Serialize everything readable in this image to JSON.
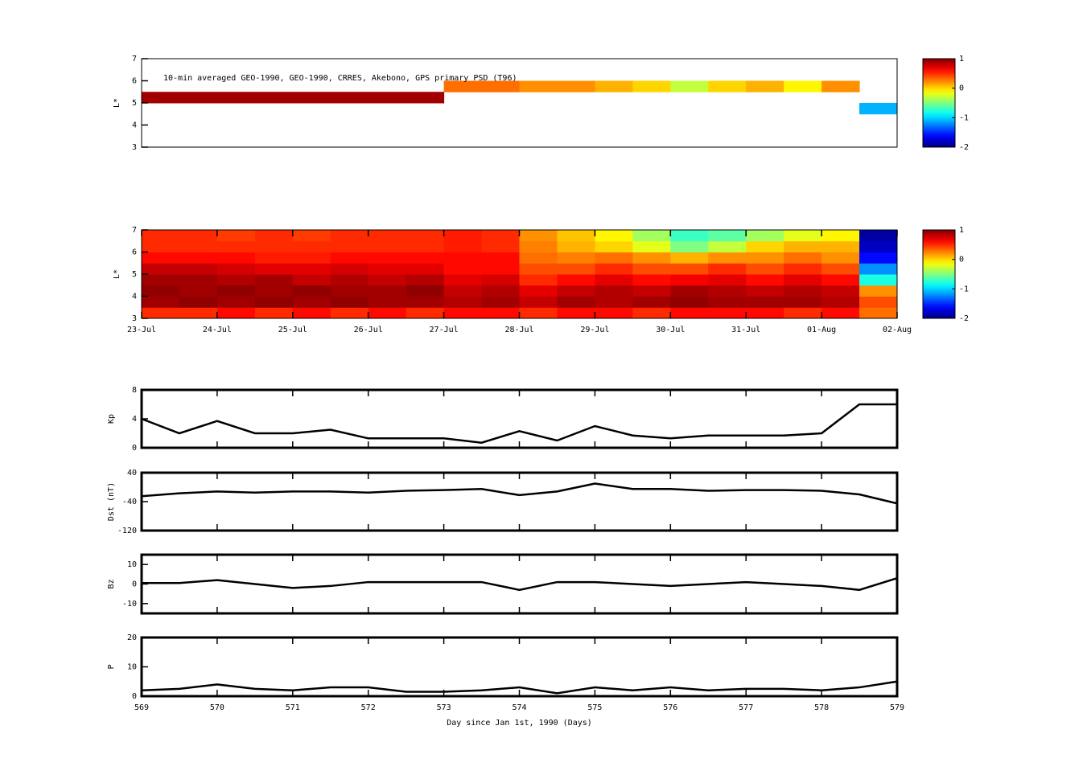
{
  "chart_data": [
    {
      "type": "heatmap",
      "annotation": "10-min averaged GEO-1990, GEO-1990, CRRES, Akebono, GPS  primary PSD (T96)",
      "ylabel": "L*",
      "xlim": [
        569,
        579
      ],
      "ylim": [
        3,
        7
      ],
      "yticks": [
        3,
        4,
        5,
        6,
        7
      ],
      "clim": [
        -2,
        1
      ],
      "cticks": [
        -2,
        -1,
        0,
        1
      ],
      "xbins": [
        569,
        569.5,
        570,
        570.5,
        571,
        571.5,
        572,
        572.5,
        573,
        573.5,
        574,
        574.5,
        575,
        575.5,
        576,
        576.5,
        577,
        577.5,
        578,
        578.5,
        579
      ],
      "ybins": [
        3,
        3.5,
        4,
        4.5,
        5,
        5.5,
        6,
        6.5,
        7
      ],
      "values": [
        [
          null,
          null,
          null,
          null,
          null,
          null,
          null,
          null,
          null,
          null,
          null,
          null,
          null,
          null,
          null,
          null,
          null,
          null,
          null,
          null
        ],
        [
          null,
          null,
          null,
          null,
          null,
          null,
          null,
          null,
          null,
          null,
          null,
          null,
          null,
          null,
          null,
          null,
          null,
          null,
          null,
          null
        ],
        [
          null,
          null,
          null,
          null,
          null,
          null,
          null,
          null,
          null,
          null,
          null,
          null,
          null,
          null,
          null,
          null,
          null,
          null,
          null,
          null
        ],
        [
          null,
          null,
          null,
          null,
          null,
          null,
          null,
          null,
          null,
          null,
          null,
          null,
          null,
          null,
          null,
          null,
          null,
          null,
          null,
          -1.1
        ],
        [
          0.9,
          0.9,
          0.9,
          0.9,
          0.9,
          0.9,
          0.9,
          0.9,
          null,
          null,
          null,
          null,
          null,
          null,
          null,
          null,
          null,
          null,
          null,
          null
        ],
        [
          null,
          null,
          null,
          null,
          null,
          null,
          null,
          null,
          0.3,
          0.3,
          0.2,
          0.2,
          0.1,
          0.0,
          -0.3,
          0.0,
          0.1,
          -0.1,
          0.2,
          null
        ],
        [
          null,
          null,
          null,
          null,
          null,
          null,
          null,
          null,
          null,
          null,
          null,
          null,
          null,
          null,
          null,
          null,
          null,
          null,
          null,
          null
        ],
        [
          null,
          null,
          null,
          null,
          null,
          null,
          null,
          null,
          null,
          null,
          null,
          null,
          null,
          null,
          null,
          null,
          null,
          null,
          null,
          null
        ]
      ]
    },
    {
      "type": "heatmap",
      "ylabel": "L*",
      "xlim": [
        569,
        579
      ],
      "ylim": [
        3,
        7
      ],
      "yticks": [
        3,
        4,
        5,
        6,
        7
      ],
      "clim": [
        -2,
        1
      ],
      "cticks": [
        -2,
        -1,
        0,
        1
      ],
      "xticks": [
        {
          "value": 569,
          "label": "23-Jul"
        },
        {
          "value": 570,
          "label": "24-Jul"
        },
        {
          "value": 571,
          "label": "25-Jul"
        },
        {
          "value": 572,
          "label": "26-Jul"
        },
        {
          "value": 573,
          "label": "27-Jul"
        },
        {
          "value": 574,
          "label": "28-Jul"
        },
        {
          "value": 575,
          "label": "29-Jul"
        },
        {
          "value": 576,
          "label": "30-Jul"
        },
        {
          "value": 577,
          "label": "31-Jul"
        },
        {
          "value": 578,
          "label": "01-Aug"
        },
        {
          "value": 579,
          "label": "02-Aug"
        }
      ],
      "xbins": [
        569,
        569.5,
        570,
        570.5,
        571,
        571.5,
        572,
        572.5,
        573,
        573.5,
        574,
        574.5,
        575,
        575.5,
        576,
        576.5,
        577,
        577.5,
        578,
        578.5,
        579
      ],
      "ybins": [
        3,
        3.5,
        4,
        4.5,
        5,
        5.5,
        6,
        6.5,
        7
      ],
      "values": [
        [
          0.5,
          0.5,
          0.6,
          0.5,
          0.6,
          0.5,
          0.6,
          0.5,
          0.6,
          0.6,
          0.5,
          0.6,
          0.6,
          0.5,
          0.6,
          0.6,
          0.6,
          0.5,
          0.6,
          0.3
        ],
        [
          0.9,
          0.95,
          0.9,
          0.95,
          0.9,
          0.95,
          0.9,
          0.9,
          0.85,
          0.9,
          0.8,
          0.9,
          0.85,
          0.9,
          0.95,
          0.9,
          0.9,
          0.9,
          0.85,
          0.4
        ],
        [
          0.95,
          0.9,
          0.95,
          0.9,
          0.95,
          0.9,
          0.9,
          0.95,
          0.8,
          0.85,
          0.7,
          0.8,
          0.85,
          0.8,
          0.9,
          0.85,
          0.8,
          0.85,
          0.8,
          0.2
        ],
        [
          0.9,
          0.9,
          0.85,
          0.9,
          0.8,
          0.85,
          0.8,
          0.85,
          0.7,
          0.75,
          0.5,
          0.6,
          0.7,
          0.6,
          0.65,
          0.7,
          0.6,
          0.7,
          0.6,
          -0.8
        ],
        [
          0.8,
          0.8,
          0.75,
          0.7,
          0.7,
          0.75,
          0.7,
          0.7,
          0.6,
          0.6,
          0.4,
          0.4,
          0.5,
          0.4,
          0.4,
          0.5,
          0.4,
          0.5,
          0.4,
          -1.2
        ],
        [
          0.6,
          0.6,
          0.6,
          0.55,
          0.55,
          0.6,
          0.6,
          0.6,
          0.6,
          0.6,
          0.3,
          0.25,
          0.3,
          0.2,
          0.1,
          0.2,
          0.2,
          0.3,
          0.2,
          -1.6
        ],
        [
          0.5,
          0.5,
          0.5,
          0.5,
          0.5,
          0.5,
          0.5,
          0.5,
          0.55,
          0.5,
          0.25,
          0.1,
          0.0,
          -0.2,
          -0.5,
          -0.3,
          0.0,
          0.1,
          0.1,
          -1.8
        ],
        [
          0.5,
          0.5,
          0.45,
          0.5,
          0.45,
          0.5,
          0.5,
          0.5,
          0.55,
          0.5,
          0.2,
          0.05,
          -0.1,
          -0.4,
          -0.7,
          -0.6,
          -0.4,
          -0.2,
          -0.1,
          -1.9
        ]
      ]
    },
    {
      "type": "line",
      "ylabel": "Kp",
      "color": "#000000",
      "xlim": [
        569,
        579
      ],
      "ylim": [
        0,
        8
      ],
      "yticks": [
        0,
        4,
        8
      ],
      "xticks": [
        569,
        570,
        571,
        572,
        573,
        574,
        575,
        576,
        577,
        578,
        579
      ],
      "x": [
        569,
        569.5,
        570,
        570.5,
        571,
        571.5,
        572,
        572.5,
        573,
        573.5,
        574,
        574.5,
        575,
        575.5,
        576,
        576.5,
        577,
        577.5,
        578,
        578.5,
        579
      ],
      "values": [
        4,
        2,
        3.7,
        2,
        2,
        2.5,
        1.3,
        1.3,
        1.3,
        0.7,
        2.3,
        1,
        3,
        1.7,
        1.3,
        1.7,
        1.7,
        1.7,
        2,
        6,
        6
      ]
    },
    {
      "type": "line",
      "ylabel": "Dst (nT)",
      "color": "#000000",
      "xlim": [
        569,
        579
      ],
      "ylim": [
        -120,
        40
      ],
      "yticks": [
        -120,
        -40,
        40
      ],
      "xticks": [
        569,
        570,
        571,
        572,
        573,
        574,
        575,
        576,
        577,
        578,
        579
      ],
      "x": [
        569,
        569.5,
        570,
        570.5,
        571,
        571.5,
        572,
        572.5,
        573,
        573.5,
        574,
        574.5,
        575,
        575.5,
        576,
        576.5,
        577,
        577.5,
        578,
        578.5,
        579
      ],
      "values": [
        -25,
        -17,
        -12,
        -15,
        -12,
        -12,
        -15,
        -10,
        -8,
        -5,
        -22,
        -12,
        10,
        -5,
        -5,
        -10,
        -8,
        -8,
        -10,
        -20,
        -45
      ]
    },
    {
      "type": "line",
      "ylabel": "Bz",
      "color": "#000000",
      "xlim": [
        569,
        579
      ],
      "ylim": [
        -15,
        15
      ],
      "yticks": [
        -10,
        0,
        10
      ],
      "xticks": [
        569,
        570,
        571,
        572,
        573,
        574,
        575,
        576,
        577,
        578,
        579
      ],
      "x": [
        569,
        569.5,
        570,
        570.5,
        571,
        571.5,
        572,
        572.5,
        573,
        573.5,
        574,
        574.5,
        575,
        575.5,
        576,
        576.5,
        577,
        577.5,
        578,
        578.5,
        579
      ],
      "values": [
        0.5,
        0.5,
        2,
        0,
        -2,
        -1,
        1,
        1,
        1,
        1,
        -3,
        1,
        1,
        0,
        -1,
        0,
        1,
        0,
        -1,
        -3,
        3
      ]
    },
    {
      "type": "line",
      "ylabel": "P",
      "xlabel": "Day since Jan 1st, 1990 (Days)",
      "color": "#000000",
      "xlim": [
        569,
        579
      ],
      "ylim": [
        0,
        20
      ],
      "yticks": [
        0,
        10,
        20
      ],
      "xticks": [
        569,
        570,
        571,
        572,
        573,
        574,
        575,
        576,
        577,
        578,
        579
      ],
      "x": [
        569,
        569.5,
        570,
        570.5,
        571,
        571.5,
        572,
        572.5,
        573,
        573.5,
        574,
        574.5,
        575,
        575.5,
        576,
        576.5,
        577,
        577.5,
        578,
        578.5,
        579
      ],
      "values": [
        2,
        2.5,
        4,
        2.5,
        2,
        3,
        3,
        1.5,
        1.5,
        2,
        3,
        1,
        3,
        2,
        3,
        2,
        2.5,
        2.5,
        2,
        3,
        5
      ]
    }
  ]
}
